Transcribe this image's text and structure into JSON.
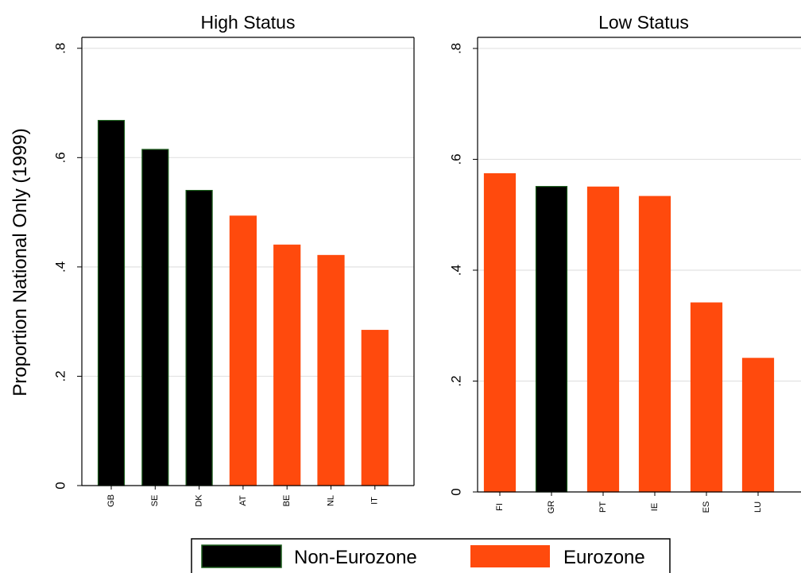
{
  "y_axis_title": "Proportion National Only (1999)",
  "chart_data": [
    {
      "type": "bar",
      "title": "High Status",
      "categories": [
        "GB",
        "SE",
        "DK",
        "AT",
        "BE",
        "NL",
        "IT"
      ],
      "values": [
        0.668,
        0.615,
        0.54,
        0.493,
        0.44,
        0.421,
        0.284
      ],
      "groups": [
        "Non-Eurozone",
        "Non-Eurozone",
        "Non-Eurozone",
        "Eurozone",
        "Eurozone",
        "Eurozone",
        "Eurozone"
      ],
      "ylim": [
        0,
        0.82
      ],
      "yticks": [
        0,
        0.2,
        0.4,
        0.6,
        0.8
      ],
      "ytick_labels": [
        "0",
        ".2",
        ".4",
        ".6",
        ".8"
      ],
      "grid": true
    },
    {
      "type": "bar",
      "title": "Low Status",
      "categories": [
        "FI",
        "GR",
        "PT",
        "IE",
        "ES",
        "LU"
      ],
      "values": [
        0.574,
        0.551,
        0.55,
        0.533,
        0.341,
        0.241
      ],
      "groups": [
        "Eurozone",
        "Non-Eurozone",
        "Eurozone",
        "Eurozone",
        "Eurozone",
        "Eurozone"
      ],
      "ylim": [
        0,
        0.82
      ],
      "yticks": [
        0,
        0.2,
        0.4,
        0.6,
        0.8
      ],
      "ytick_labels": [
        "0",
        ".2",
        ".4",
        ".6",
        ".8"
      ],
      "grid": true
    }
  ],
  "legend": {
    "placement": "bottom-center",
    "items": [
      {
        "label": "Non-Eurozone",
        "color": "#000000",
        "border": "#1a5c1a"
      },
      {
        "label": "Eurozone",
        "color": "#ff4a0d",
        "border": "#ff4a0d"
      }
    ]
  }
}
